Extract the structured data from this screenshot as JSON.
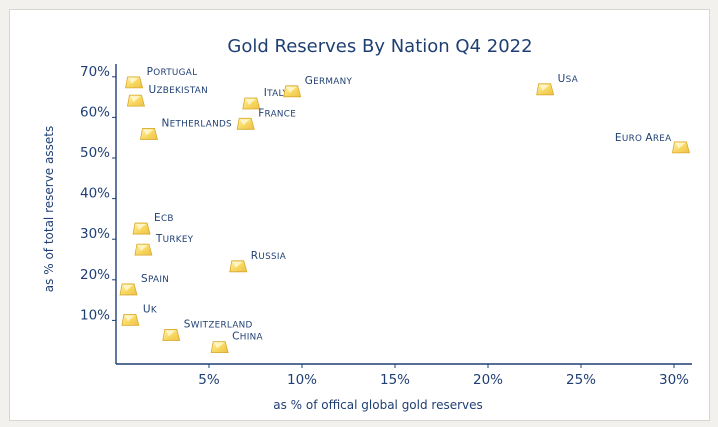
{
  "chart_data": {
    "type": "scatter",
    "title": "Gold Reserves By Nation Q4 2022",
    "xlabel": "as % of offical global gold reserves",
    "ylabel": "as % of total reserve assets",
    "xlim": [
      0,
      31
    ],
    "ylim": [
      0,
      73
    ],
    "x_ticks": [
      5,
      10,
      15,
      20,
      25,
      30
    ],
    "x_tick_labels": [
      "5%",
      "10%",
      "15%",
      "20%",
      "25%",
      "30%"
    ],
    "y_ticks": [
      10,
      20,
      30,
      40,
      50,
      60,
      70
    ],
    "y_tick_labels": [
      "10%",
      "20%",
      "30%",
      "40%",
      "50%",
      "60%",
      "70%"
    ],
    "grid": false,
    "marker": "gold-bar",
    "colors": {
      "axis": "#1f3f73",
      "text": "#1f3f73",
      "marker": "#f6d466",
      "marker_edge": "#d9a92c"
    },
    "points": [
      {
        "label": "Portugal",
        "x": 1.0,
        "y": 68.5
      },
      {
        "label": "Uzbekistan",
        "x": 1.1,
        "y": 64.0
      },
      {
        "label": "Netherlands",
        "x": 1.8,
        "y": 55.8
      },
      {
        "label": "Italy",
        "x": 7.3,
        "y": 63.3
      },
      {
        "label": "Germany",
        "x": 9.5,
        "y": 66.3
      },
      {
        "label": "France",
        "x": 7.0,
        "y": 58.3
      },
      {
        "label": "USA",
        "x": 23.1,
        "y": 66.8
      },
      {
        "label": "Euro Area",
        "x": 30.4,
        "y": 52.5
      },
      {
        "label": "ECB",
        "x": 1.4,
        "y": 32.5
      },
      {
        "label": "Turkey",
        "x": 1.5,
        "y": 27.3
      },
      {
        "label": "Russia",
        "x": 6.6,
        "y": 23.2
      },
      {
        "label": "Spain",
        "x": 0.7,
        "y": 17.5
      },
      {
        "label": "UK",
        "x": 0.8,
        "y": 10.0
      },
      {
        "label": "Switzerland",
        "x": 3.0,
        "y": 6.3
      },
      {
        "label": "China",
        "x": 5.6,
        "y": 3.3
      }
    ]
  }
}
